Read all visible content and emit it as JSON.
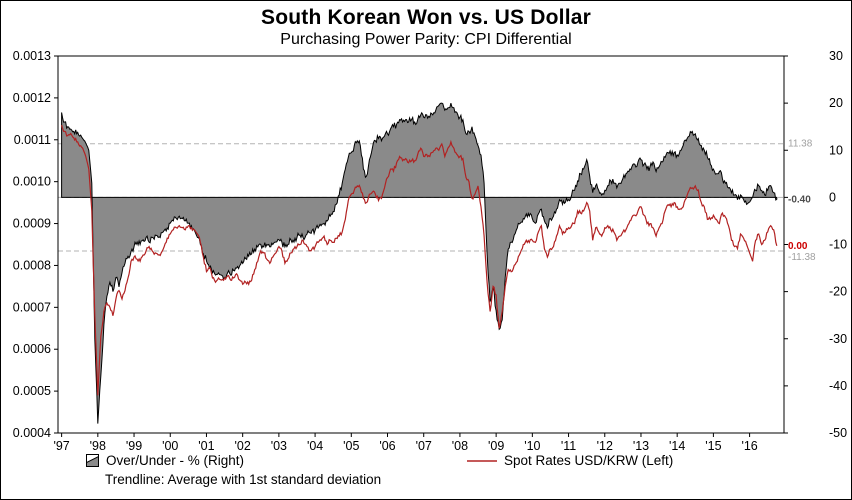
{
  "title": "South Korean Won vs. US Dollar",
  "subtitle": "Purchasing Power Parity: CPI Differential",
  "legend": {
    "area_label": "Over/Under - % (Right)",
    "line_label": "Spot Rates USD/KRW (Left)",
    "trendline_note": "Trendline: Average with 1st standard deviation"
  },
  "colors": {
    "area_fill": "#8a8a8a",
    "area_stroke": "#000000",
    "spot_line": "#b22222",
    "band_line": "#b3b3b3",
    "band_label": "#a0a0a0",
    "last_over_under_label": "#4d4d4d",
    "last_spot_label": "#cc0000",
    "axis": "#000000"
  },
  "chart_data": {
    "type": "area+line",
    "title": "South Korean Won vs. US Dollar",
    "subtitle": "Purchasing Power Parity: CPI Differential",
    "x_start": 1997.0,
    "points_per_year": 12,
    "x_domain": [
      1996.9,
      2016.95
    ],
    "x_axis": {
      "tick_values": [
        1997,
        1998,
        1999,
        2000,
        2001,
        2002,
        2003,
        2004,
        2005,
        2006,
        2007,
        2008,
        2009,
        2010,
        2011,
        2012,
        2013,
        2014,
        2015,
        2016
      ],
      "tick_labels": [
        "'97",
        "'98",
        "'99",
        "'00",
        "'01",
        "'02",
        "'03",
        "'04",
        "'05",
        "'06",
        "'07",
        "'08",
        "'09",
        "'10",
        "'11",
        "'12",
        "'13",
        "'14",
        "'15",
        "'16"
      ]
    },
    "left_axis": {
      "series": "Spot Rates USD/KRW",
      "min": 0.0004,
      "max": 0.0013,
      "tick_step": 0.0001,
      "tick_labels": [
        "0.0013",
        "0.0012",
        "0.0011",
        "0.0010",
        "0.0009",
        "0.0008",
        "0.0007",
        "0.0006",
        "0.0005",
        "0.0004"
      ]
    },
    "right_axis": {
      "series": "Over/Under - %",
      "min": -50,
      "max": 30,
      "tick_step": 10,
      "tick_labels": [
        "30",
        "20",
        "10",
        "0",
        "-10",
        "-20",
        "-30",
        "-40",
        "-50"
      ]
    },
    "trend": {
      "average": 0.0,
      "upper_band": 11.38,
      "lower_band": -11.38
    },
    "last_values": {
      "over_under": -0.4,
      "spot_display": "0.00"
    },
    "annotations": [
      {
        "text": "11.38",
        "axis": "right",
        "value": 11.38,
        "color_key": "band_label",
        "weight": "normal",
        "dy": 3
      },
      {
        "text": "-0.40",
        "axis": "right",
        "value": -0.4,
        "color_key": "last_over_under_label",
        "weight": "bold",
        "dy": 3
      },
      {
        "text": "0.00",
        "axis": "left",
        "value": 0.000847,
        "color_key": "last_spot_label",
        "weight": "bold",
        "dy": 3
      },
      {
        "text": "-11.38",
        "axis": "right",
        "value": -11.38,
        "color_key": "band_label",
        "weight": "normal",
        "dy": 9
      }
    ],
    "over_under": [
      18,
      16,
      15,
      14.5,
      14,
      13.5,
      13,
      12.5,
      11.5,
      10,
      3,
      -30,
      -48,
      -38,
      -27,
      -21,
      -18,
      -20,
      -17,
      -19,
      -16,
      -14,
      -12.5,
      -11.5,
      -10.5,
      -9.5,
      -10,
      -9,
      -8.5,
      -9.5,
      -8.5,
      -8,
      -8.5,
      -7.5,
      -7,
      -6.5,
      -5.5,
      -5,
      -4.5,
      -4,
      -4.5,
      -5,
      -5.5,
      -6,
      -7,
      -8.5,
      -10,
      -12,
      -13.5,
      -15,
      -16,
      -16.5,
      -16,
      -16.5,
      -17,
      -16,
      -16.5,
      -15.5,
      -15,
      -14.5,
      -14,
      -13,
      -12.5,
      -12,
      -11,
      -10.5,
      -10,
      -10.5,
      -10,
      -10.5,
      -10,
      -9.5,
      -9,
      -9.5,
      -10.5,
      -10,
      -9,
      -9.5,
      -8.5,
      -8,
      -8.5,
      -8,
      -7.5,
      -7,
      -7,
      -6.5,
      -6,
      -5.5,
      -5,
      -4,
      -3,
      -1.5,
      0.5,
      3,
      6,
      8.5,
      9.5,
      11,
      12,
      11,
      6,
      4.5,
      8,
      10.5,
      12,
      12.5,
      12,
      13,
      13.5,
      14.5,
      15,
      15.5,
      16.5,
      16,
      16.5,
      16,
      16.5,
      16,
      16.5,
      17.5,
      17,
      17.5,
      17,
      17.5,
      18.5,
      19.5,
      20,
      18.5,
      19,
      20,
      19,
      18,
      17,
      16.5,
      13.5,
      14,
      15,
      13,
      11,
      9,
      3,
      -12,
      -22,
      -19,
      -24,
      -28,
      -26,
      -17,
      -11,
      -9.5,
      -8,
      -6.5,
      -5.5,
      -4.5,
      -3.5,
      -4,
      -4.5,
      -5.5,
      -3.5,
      -2.5,
      -5,
      -6.5,
      -4.5,
      -4,
      -2.5,
      -0.5,
      -1.5,
      -1,
      -0.5,
      0.5,
      1.5,
      3.5,
      5,
      6,
      8,
      4.5,
      1,
      2.5,
      1.5,
      0.5,
      1.5,
      2.5,
      3.5,
      3,
      2,
      3,
      4,
      5,
      5.5,
      6.5,
      7,
      7.5,
      8,
      7,
      6,
      6.5,
      7.5,
      5.5,
      6.5,
      7.5,
      8.5,
      9.5,
      9,
      9.5,
      9,
      10,
      11,
      12,
      13,
      14,
      13.5,
      12.5,
      11,
      10,
      8.5,
      7,
      6,
      5,
      5.5,
      4,
      3,
      2,
      1,
      0.5,
      -0.5,
      0.5,
      -0.5,
      -1.5,
      -1,
      0,
      1.5,
      2.5,
      1.5,
      0.5,
      1.5,
      2.5,
      1,
      -0.4
    ],
    "spot_unit_scale": 0.0001,
    "spot_values": [
      11.35,
      11.2,
      11.1,
      11.15,
      11.05,
      10.95,
      10.85,
      10.8,
      10.6,
      10.3,
      9.3,
      6.8,
      4.9,
      6.3,
      6.9,
      7.1,
      7.0,
      6.8,
      7.2,
      7.4,
      7.2,
      7.4,
      7.7,
      8.1,
      8.2,
      8.15,
      8.1,
      8.25,
      8.35,
      8.45,
      8.35,
      8.3,
      8.25,
      8.3,
      8.45,
      8.65,
      8.75,
      8.85,
      8.9,
      8.95,
      8.9,
      8.85,
      8.95,
      8.9,
      8.85,
      8.75,
      8.55,
      8.2,
      7.85,
      7.95,
      7.7,
      7.6,
      7.7,
      7.65,
      7.7,
      7.75,
      7.65,
      7.7,
      7.8,
      7.65,
      7.55,
      7.6,
      7.55,
      7.65,
      7.9,
      8.1,
      8.35,
      8.3,
      8.15,
      8.05,
      8.2,
      8.3,
      8.45,
      8.35,
      8.05,
      8.15,
      8.3,
      8.4,
      8.45,
      8.5,
      8.6,
      8.5,
      8.35,
      8.4,
      8.45,
      8.55,
      8.6,
      8.7,
      8.5,
      8.6,
      8.55,
      8.65,
      8.7,
      8.8,
      9.1,
      9.55,
      9.7,
      9.8,
      9.9,
      9.85,
      9.6,
      9.5,
      9.7,
      9.75,
      9.7,
      9.55,
      9.6,
      9.85,
      10.1,
      10.3,
      10.25,
      10.45,
      10.6,
      10.5,
      10.55,
      10.45,
      10.5,
      10.5,
      10.65,
      10.8,
      10.6,
      10.65,
      10.6,
      10.7,
      10.8,
      10.75,
      10.9,
      10.6,
      10.8,
      10.95,
      10.8,
      10.65,
      10.6,
      10.55,
      10.1,
      10.0,
      9.6,
      9.7,
      9.9,
      9.4,
      8.7,
      7.6,
      6.9,
      7.5,
      7.3,
      6.5,
      6.9,
      7.5,
      7.9,
      7.85,
      8.0,
      8.1,
      8.3,
      8.5,
      8.6,
      8.55,
      8.6,
      8.55,
      8.8,
      8.95,
      8.4,
      8.2,
      8.4,
      8.45,
      8.7,
      8.95,
      8.75,
      8.8,
      8.9,
      8.95,
      9.0,
      9.3,
      9.25,
      9.3,
      9.5,
      9.3,
      8.6,
      8.9,
      8.8,
      8.7,
      8.9,
      8.95,
      8.85,
      8.8,
      8.6,
      8.7,
      8.8,
      8.85,
      9.0,
      9.15,
      9.2,
      9.3,
      9.4,
      9.2,
      9.0,
      9.0,
      8.9,
      8.7,
      8.9,
      9.0,
      9.3,
      9.45,
      9.4,
      9.5,
      9.4,
      9.35,
      9.4,
      9.6,
      9.8,
      9.85,
      9.9,
      9.8,
      9.5,
      9.4,
      9.1,
      9.1,
      9.2,
      9.1,
      9.0,
      9.25,
      9.15,
      8.95,
      8.6,
      8.45,
      8.4,
      8.75,
      8.65,
      8.5,
      8.3,
      8.1,
      8.6,
      8.75,
      8.5,
      8.6,
      8.8,
      8.95,
      8.85,
      8.47
    ]
  }
}
